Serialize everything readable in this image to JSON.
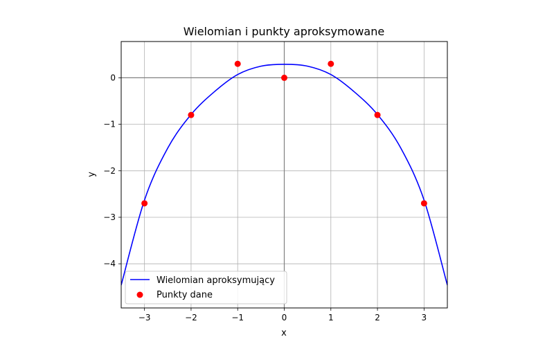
{
  "chart_data": {
    "type": "line",
    "title": "Wielomian i punkty aproksymowane",
    "xlabel": "x",
    "ylabel": "y",
    "xlim": [
      -3.5,
      3.5
    ],
    "ylim": [
      -4.95,
      0.78
    ],
    "xticks": [
      -3,
      -2,
      -1,
      0,
      1,
      2,
      3
    ],
    "yticks": [
      -4,
      -3,
      -2,
      -1,
      0
    ],
    "grid": true,
    "zero_lines": true,
    "legend": {
      "placement": "bottom-left",
      "entries": [
        "Wielomian aproksymujący",
        "Punkty dane"
      ]
    },
    "series": [
      {
        "name": "Wielomian aproksymujący",
        "kind": "line",
        "color": "#0000ff",
        "x": [
          -3.5,
          -3.0,
          -2.5,
          -2.0,
          -1.5,
          -1.0,
          -0.5,
          0.0,
          0.5,
          1.0,
          1.5,
          2.0,
          2.5,
          3.0,
          3.5
        ],
        "y": [
          -4.46,
          -2.63,
          -1.51,
          -0.79,
          -0.3,
          0.07,
          0.25,
          0.29,
          0.25,
          0.07,
          -0.3,
          -0.79,
          -1.51,
          -2.63,
          -4.46
        ]
      },
      {
        "name": "Punkty dane",
        "kind": "scatter",
        "color": "#ff0000",
        "x": [
          -3,
          -2,
          -1,
          0,
          1,
          2,
          3
        ],
        "y": [
          -2.7,
          -0.8,
          0.3,
          0.0,
          0.3,
          -0.8,
          -2.7
        ]
      }
    ]
  }
}
